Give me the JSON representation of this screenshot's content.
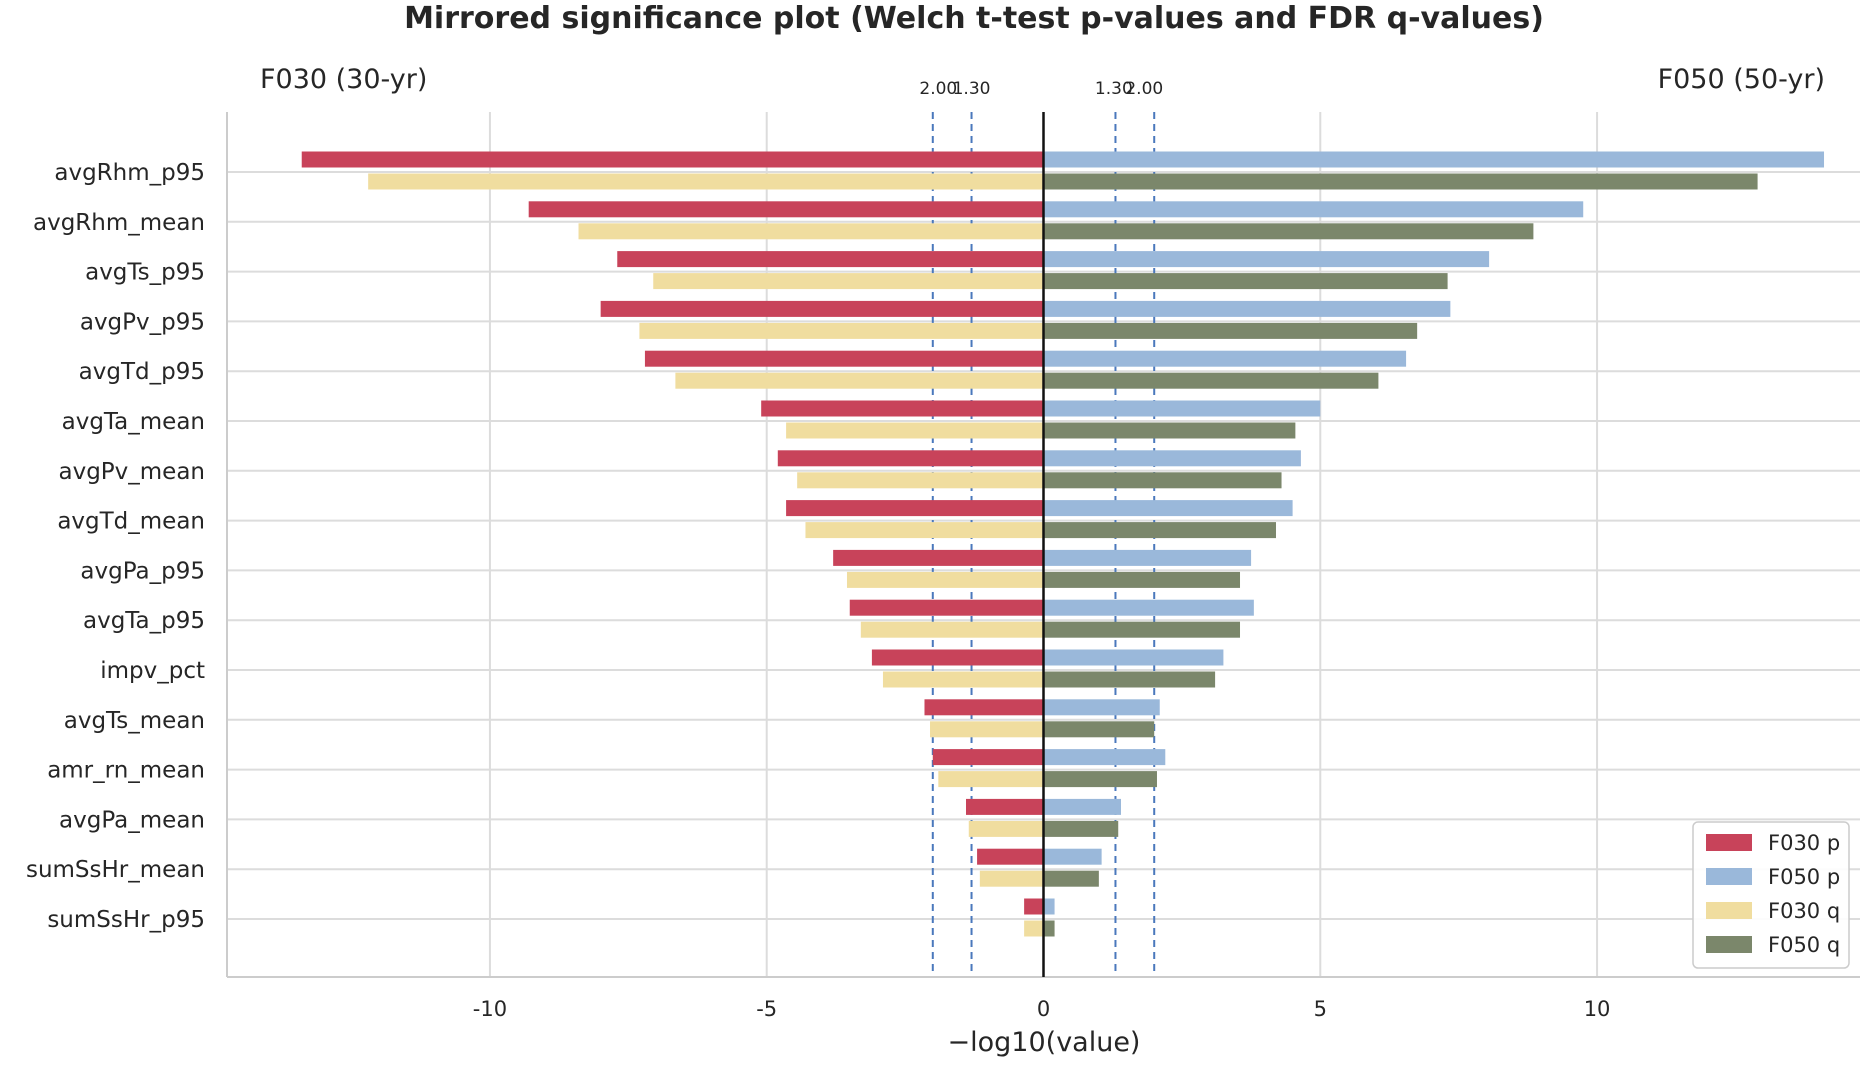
{
  "chart_data": {
    "type": "bar",
    "orientation": "horizontal-mirrored",
    "title": "Mirrored significance plot (Welch t-test p-values and FDR q-values)",
    "left_header": "F030 (30-yr)",
    "right_header": "F050 (50-yr)",
    "xlabel": "−log10(value)",
    "ylabel": "",
    "xlim": [
      -14.75,
      14.75
    ],
    "xticks": [
      -10,
      -5,
      0,
      5,
      10
    ],
    "xtick_labels": [
      "-10",
      "-5",
      "0",
      "5",
      "10"
    ],
    "grid": true,
    "legend_position": "lower-right",
    "threshold_lines": [
      -2.0,
      -1.3,
      1.3,
      2.0
    ],
    "threshold_labels": {
      "left": [
        "2.00",
        "1.30"
      ],
      "right": [
        "1.30",
        "2.00"
      ]
    },
    "categories": [
      "avgRhm_p95",
      "avgRhm_mean",
      "avgTs_p95",
      "avgPv_p95",
      "avgTd_p95",
      "avgTa_mean",
      "avgPv_mean",
      "avgTd_mean",
      "avgPa_p95",
      "avgTa_p95",
      "impv_pct",
      "avgTs_mean",
      "amr_rn_mean",
      "avgPa_mean",
      "sumSsHr_mean",
      "sumSsHr_p95"
    ],
    "series": [
      {
        "name": "F030 p",
        "color": "#c8435a",
        "side": "left",
        "slot": 0,
        "values": [
          -13.4,
          -9.3,
          -7.7,
          -8.0,
          -7.2,
          -5.1,
          -4.8,
          -4.65,
          -3.8,
          -3.5,
          -3.1,
          -2.15,
          -2.0,
          -1.4,
          -1.2,
          -0.35
        ]
      },
      {
        "name": "F050 p",
        "color": "#9ab8da",
        "side": "right",
        "slot": 0,
        "values": [
          14.1,
          9.75,
          8.05,
          7.35,
          6.55,
          5.0,
          4.65,
          4.5,
          3.75,
          3.8,
          3.25,
          2.1,
          2.2,
          1.4,
          1.05,
          0.2
        ]
      },
      {
        "name": "F030 q",
        "color": "#f0dd9f",
        "side": "left",
        "slot": 1,
        "values": [
          -12.2,
          -8.4,
          -7.05,
          -7.3,
          -6.65,
          -4.65,
          -4.45,
          -4.3,
          -3.55,
          -3.3,
          -2.9,
          -2.05,
          -1.9,
          -1.35,
          -1.15,
          -0.35
        ]
      },
      {
        "name": "F050 q",
        "color": "#7b876b",
        "side": "right",
        "slot": 1,
        "values": [
          12.9,
          8.85,
          7.3,
          6.75,
          6.05,
          4.55,
          4.3,
          4.2,
          3.55,
          3.55,
          3.1,
          2.0,
          2.05,
          1.35,
          1.0,
          0.2
        ]
      }
    ]
  }
}
